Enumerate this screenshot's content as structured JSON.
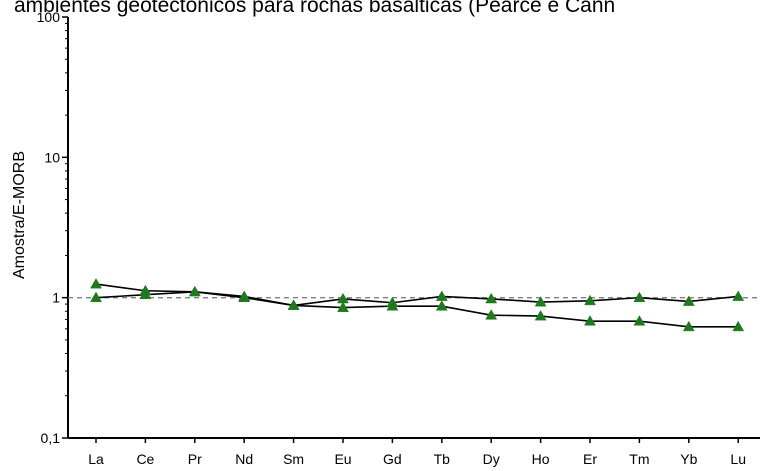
{
  "chart_data": {
    "type": "line",
    "title": "ambientes geotectônicos para rochas basálticas (Pearce e Cann",
    "xlabel": "",
    "ylabel": "Amostra/E-MORB",
    "y_scale": "log",
    "ylim": [
      0.1,
      100
    ],
    "y_ticks": [
      "0,1",
      "1",
      "10",
      "100"
    ],
    "reference_line": 1,
    "categories": [
      "La",
      "Ce",
      "Pr",
      "Nd",
      "Sm",
      "Eu",
      "Gd",
      "Tb",
      "Dy",
      "Ho",
      "Er",
      "Tm",
      "Yb",
      "Lu"
    ],
    "series": [
      {
        "values": [
          1.25,
          1.12,
          1.1,
          1.02,
          0.88,
          0.85,
          0.87,
          0.87,
          0.75,
          0.74,
          0.68,
          0.68,
          0.62,
          0.62
        ]
      },
      {
        "values": [
          1.0,
          1.05,
          1.1,
          1.0,
          0.88,
          0.98,
          0.92,
          1.02,
          0.98,
          0.93,
          0.95,
          1.0,
          0.94,
          1.02
        ]
      }
    ],
    "grid": false,
    "marker": "triangle",
    "marker_color": "#1f7a1f",
    "line_color": "#000000",
    "reference_line_color": "#808080"
  }
}
